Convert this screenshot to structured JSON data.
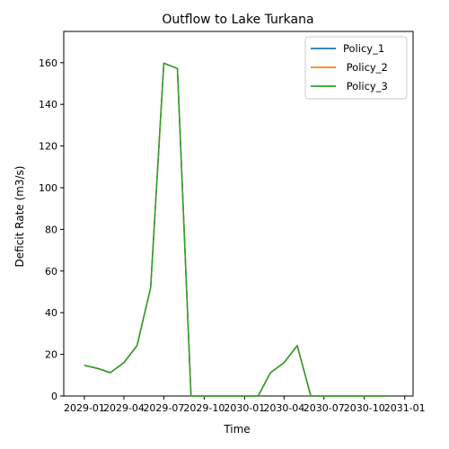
{
  "chart_data": {
    "type": "line",
    "title": "Outflow to Lake Turkana",
    "xlabel": "Time",
    "ylabel": "Deficit Rate (m3/s)",
    "ylim": [
      0,
      175
    ],
    "yticks": [
      0,
      20,
      40,
      60,
      80,
      100,
      120,
      140,
      160
    ],
    "xlim": [
      "2028-11-15",
      "2031-01-20"
    ],
    "xticks": [
      "2029-01",
      "2029-04",
      "2029-07",
      "2029-10",
      "2030-01",
      "2030-04",
      "2030-07",
      "2030-10",
      "2031-01"
    ],
    "grid": false,
    "legend": "top-right",
    "x": [
      "2029-01-01",
      "2029-02-01",
      "2029-03-01",
      "2029-04-01",
      "2029-05-01",
      "2029-06-01",
      "2029-07-01",
      "2029-08-01",
      "2029-09-01",
      "2029-10-01",
      "2029-11-01",
      "2029-12-01",
      "2030-01-01",
      "2030-02-01",
      "2030-03-01",
      "2030-04-01",
      "2030-05-01",
      "2030-06-01",
      "2030-07-01",
      "2030-08-01",
      "2030-09-01",
      "2030-10-01",
      "2030-11-01",
      "2030-12-01"
    ],
    "series": [
      {
        "name": "Policy_1",
        "color": "#1f77b4",
        "values": [
          14.7,
          13.2,
          11.2,
          16.0,
          24.2,
          52.0,
          159.8,
          157.2,
          0,
          0,
          0,
          0,
          0,
          0,
          11.2,
          16.0,
          24.2,
          0,
          0,
          0,
          0,
          0,
          0,
          0
        ]
      },
      {
        "name": " Policy_2",
        "color": "#ff7f0e",
        "values": [
          14.7,
          13.2,
          11.2,
          16.0,
          24.2,
          52.0,
          159.8,
          157.2,
          0,
          0,
          0,
          0,
          0,
          0,
          11.2,
          16.0,
          24.2,
          0,
          0,
          0,
          0,
          0,
          0,
          0
        ]
      },
      {
        "name": " Policy_3",
        "color": "#2ca02c",
        "values": [
          14.7,
          13.2,
          11.2,
          16.0,
          24.2,
          52.0,
          159.8,
          157.2,
          0,
          0,
          0,
          0,
          0,
          0,
          11.2,
          16.0,
          24.2,
          0,
          0,
          0,
          0,
          0,
          0,
          0
        ]
      }
    ]
  }
}
